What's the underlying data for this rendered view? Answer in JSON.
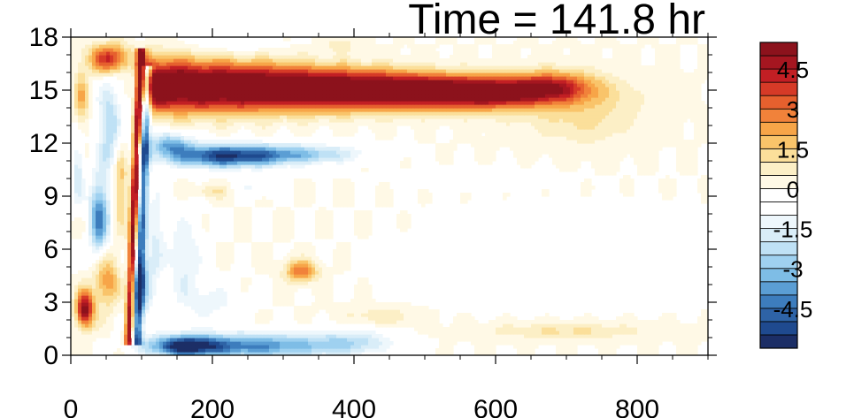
{
  "chart_data": {
    "type": "heatmap",
    "title": "Time = 141.8 hr",
    "xlabel": "",
    "ylabel": "",
    "xlim": [
      0,
      900
    ],
    "ylim": [
      0,
      18
    ],
    "x_ticks": [
      0,
      200,
      400,
      600,
      800
    ],
    "y_ticks": [
      0,
      3,
      6,
      9,
      12,
      15,
      18
    ],
    "grid": false,
    "colorbar": {
      "placement": "right",
      "levels": [
        -5.5,
        -5,
        -4.5,
        -4,
        -3.5,
        -3,
        -2.5,
        -2,
        -1.5,
        -1,
        -0.5,
        0,
        0.5,
        1,
        1.5,
        2,
        2.5,
        3,
        3.5,
        4,
        4.5,
        5,
        5.5
      ],
      "labels": [
        {
          "value": 4.5,
          "text": "4.5"
        },
        {
          "value": 3,
          "text": "3"
        },
        {
          "value": 1.5,
          "text": "1.5"
        },
        {
          "value": 0,
          "text": "0"
        },
        {
          "value": -1.5,
          "text": "-1.5"
        },
        {
          "value": -3,
          "text": "-3"
        },
        {
          "value": -4.5,
          "text": "-4.5"
        }
      ],
      "colors": [
        "#1c2e66",
        "#1f4a8f",
        "#2e63a6",
        "#3d7dbd",
        "#5b9ed4",
        "#7ebde6",
        "#9fd1f0",
        "#bfe1f5",
        "#d9edf8",
        "#eef7fc",
        "#ffffff",
        "#ffffff",
        "#fff9e6",
        "#fcefc6",
        "#fbdf9a",
        "#f9c46a",
        "#f7a548",
        "#f1823a",
        "#e6602e",
        "#d63a27",
        "#c21f24",
        "#a51620",
        "#8c121c"
      ]
    },
    "features": [
      {
        "x": 400,
        "y": 15.2,
        "value": 6.0,
        "desc": "strong positive jet 100-640, 13-17"
      },
      {
        "x": 220,
        "y": 11.3,
        "value": -4.5,
        "desc": "negative band below jet"
      },
      {
        "x": 250,
        "y": 0.6,
        "value": -4.5,
        "desc": "negative band near y=0"
      },
      {
        "x": 85,
        "y": 8.5,
        "value": 5.0,
        "desc": "tilted positive front near x=85"
      },
      {
        "x": 40,
        "y": 7.5,
        "value": -4.0,
        "desc": "negative structure x=20-60"
      },
      {
        "x": 20,
        "y": 2.5,
        "value": 4.5,
        "desc": "positive blob near origin"
      },
      {
        "x": 325,
        "y": 4.8,
        "value": 2.5,
        "desc": "positive blob"
      },
      {
        "x": 700,
        "y": 1.3,
        "value": 1.0,
        "desc": "weak positive band"
      },
      {
        "x": 700,
        "y": 5.5,
        "value": -0.7,
        "desc": "weak negative region"
      }
    ]
  }
}
